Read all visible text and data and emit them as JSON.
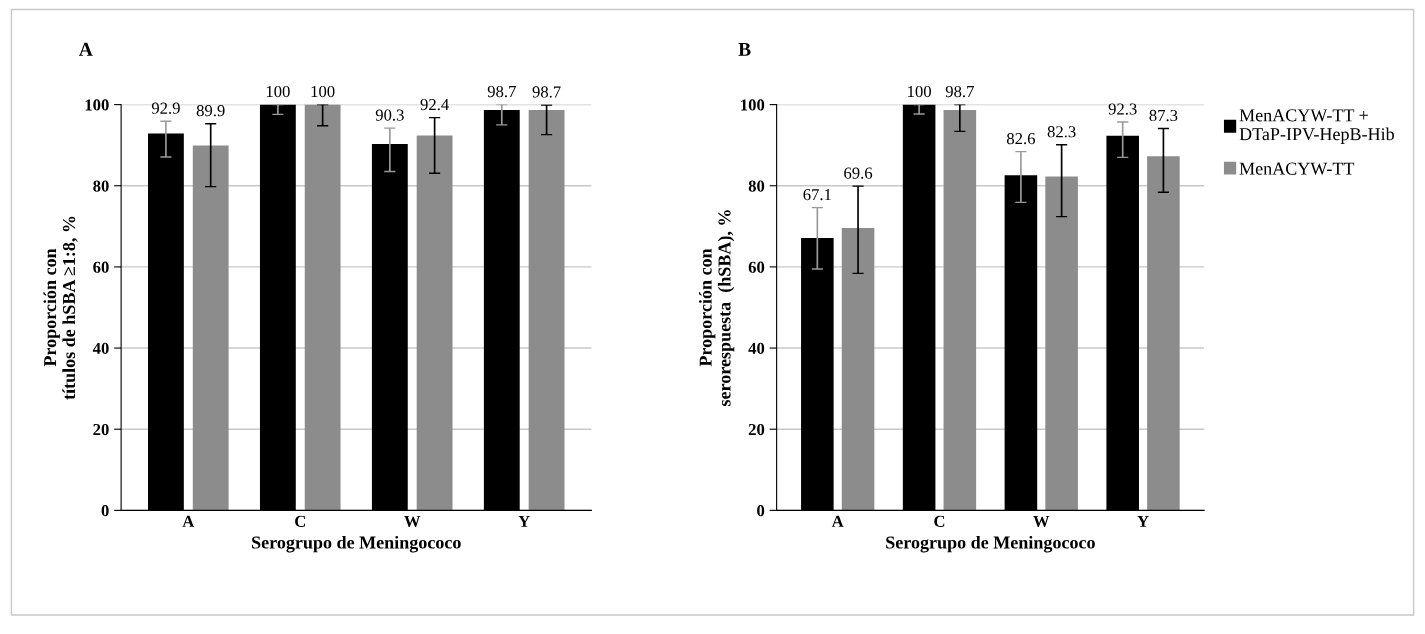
{
  "chart_data": [
    {
      "type": "bar",
      "title": "A",
      "xlabel": "Serogrupo de Meningococo",
      "ylabel": "Proporción con\ntítulos de hSBA ≥1:8, %",
      "categories": [
        "A",
        "C",
        "W",
        "Y"
      ],
      "ylim": [
        0,
        100
      ],
      "yticks": [
        0,
        20,
        40,
        60,
        80,
        100
      ],
      "grid": "y",
      "data_labels": true,
      "legend": false,
      "series": [
        {
          "color": "#000000",
          "values": [
            92.9,
            100,
            90.3,
            98.7
          ],
          "errors": [
            [
              87.1,
              95.9
            ],
            [
              97.6,
              100
            ],
            [
              83.5,
              94.2
            ],
            [
              95.0,
              100
            ]
          ]
        },
        {
          "color": "#8c8c8c",
          "values": [
            89.9,
            100,
            92.4,
            98.7
          ],
          "errors": [
            [
              79.8,
              95.3
            ],
            [
              94.8,
              100
            ],
            [
              83.1,
              96.8
            ],
            [
              92.6,
              99.9
            ]
          ]
        }
      ]
    },
    {
      "type": "bar",
      "title": "B",
      "xlabel": "Serogrupo de Meningococo",
      "ylabel": "Proporción con\nserorespuesta  (hSBA), %",
      "categories": [
        "A",
        "C",
        "W",
        "Y"
      ],
      "ylim": [
        0,
        100
      ],
      "yticks": [
        0,
        20,
        40,
        60,
        80,
        100
      ],
      "grid": "y",
      "data_labels": true,
      "legend": "right",
      "series": [
        {
          "name": "MenACYW-TT +\nDTaP-IPV-HepB-Hib",
          "color": "#000000",
          "values": [
            67.1,
            100,
            82.6,
            92.3
          ],
          "errors": [
            [
              59.5,
              74.6
            ],
            [
              97.7,
              100
            ],
            [
              75.9,
              88.4
            ],
            [
              87.0,
              95.7
            ]
          ]
        },
        {
          "name": "MenACYW-TT",
          "color": "#8c8c8c",
          "values": [
            69.6,
            98.7,
            82.3,
            87.3
          ],
          "errors": [
            [
              58.4,
              79.9
            ],
            [
              93.4,
              100
            ],
            [
              72.4,
              90.1
            ],
            [
              78.4,
              94.1
            ]
          ]
        }
      ]
    }
  ]
}
